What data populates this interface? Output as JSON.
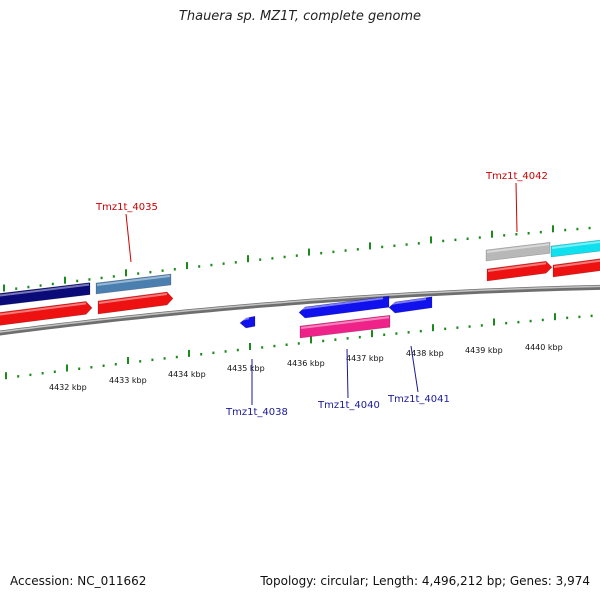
{
  "title": "Thauera sp. MZ1T, complete genome",
  "footer": {
    "accession": "Accession: NC_011662",
    "info": "Topology: circular; Length: 4,496,212 bp; Genes: 3,974"
  },
  "scale": {
    "unit": "kbp",
    "labels": [
      "4432 kbp",
      "4433 kbp",
      "4434 kbp",
      "4435 kbp",
      "4436 kbp",
      "4437 kbp",
      "4438 kbp",
      "4439 kbp",
      "4440 kbp"
    ]
  },
  "labels": {
    "red": [
      "Tmz1t_4035",
      "Tmz1t_4042"
    ],
    "blue": [
      "Tmz1t_4038",
      "Tmz1t_4040",
      "Tmz1t_4041"
    ]
  },
  "colors": {
    "navy": "#0a0a78",
    "steel": "#4a7fb0",
    "red": "#ee1111",
    "blue": "#1111ee",
    "pink": "#ee2288",
    "gray": "#b8b8b8",
    "cyan": "#10e0ee",
    "tick": "#1a8a1a",
    "backbone": "#888888",
    "red_label": "#cc0000",
    "blue_label": "#1a1a99"
  }
}
